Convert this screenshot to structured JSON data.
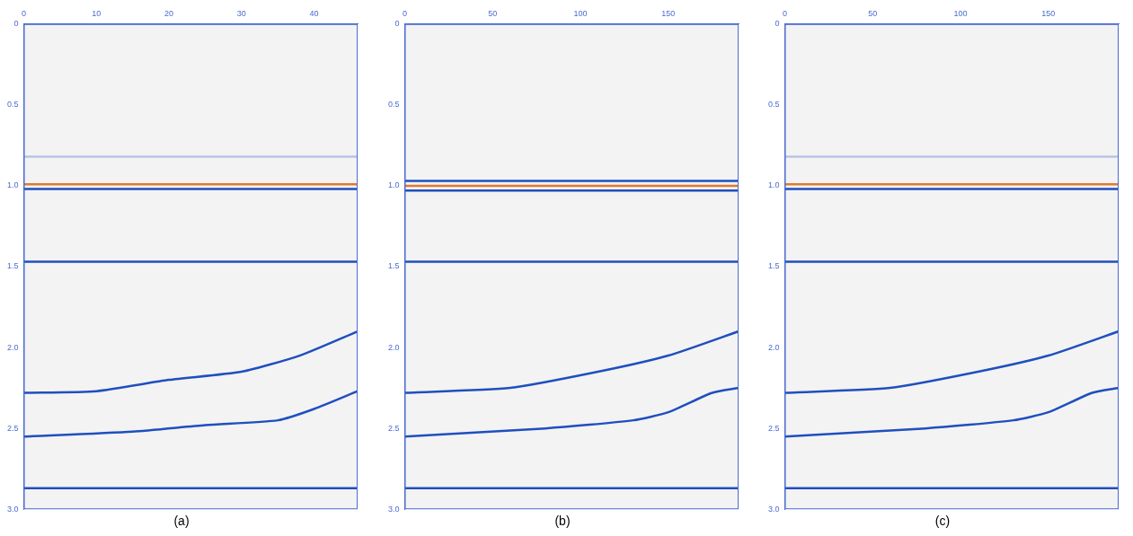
{
  "chart_data": [
    {
      "type": "line",
      "title": "(a)",
      "xlim": [
        0,
        46
      ],
      "xticks": [
        0,
        10,
        20,
        30,
        40
      ],
      "ylim": [
        0,
        3
      ],
      "yticks": [
        0,
        0.5,
        1,
        1.5,
        2,
        2.5,
        3
      ],
      "grid": false,
      "series": [
        {
          "color": "#b8c4e6",
          "x": [
            0,
            46
          ],
          "values": [
            0.82,
            0.82
          ]
        },
        {
          "color": "#e07a2e",
          "x": [
            0,
            46
          ],
          "values": [
            0.99,
            0.99
          ]
        },
        {
          "color": "#1f4fbf",
          "x": [
            0,
            46
          ],
          "values": [
            1.02,
            1.02
          ]
        },
        {
          "color": "#1f4fbf",
          "x": [
            0,
            46
          ],
          "values": [
            1.47,
            1.47
          ]
        },
        {
          "color": "#1f4fbf",
          "x": [
            0,
            10,
            20,
            30,
            38,
            46
          ],
          "values": [
            2.28,
            2.27,
            2.2,
            2.15,
            2.05,
            1.9
          ]
        },
        {
          "color": "#1f4fbf",
          "x": [
            0,
            15,
            25,
            35,
            40,
            46
          ],
          "values": [
            2.55,
            2.52,
            2.48,
            2.45,
            2.38,
            2.27
          ]
        },
        {
          "color": "#1f4fbf",
          "x": [
            0,
            46
          ],
          "values": [
            2.87,
            2.87
          ]
        }
      ]
    },
    {
      "type": "line",
      "title": "(b)",
      "xlim": [
        0,
        190
      ],
      "xticks": [
        0,
        50,
        100,
        150
      ],
      "ylim": [
        0,
        3
      ],
      "yticks": [
        0,
        0.5,
        1,
        1.5,
        2,
        2.5,
        3
      ],
      "grid": false,
      "series": [
        {
          "color": "#1f4fbf",
          "x": [
            0,
            190
          ],
          "values": [
            0.97,
            0.97
          ]
        },
        {
          "color": "#e07a2e",
          "x": [
            0,
            190
          ],
          "values": [
            1.0,
            1.0
          ]
        },
        {
          "color": "#1f4fbf",
          "x": [
            0,
            190
          ],
          "values": [
            1.03,
            1.03
          ]
        },
        {
          "color": "#1f4fbf",
          "x": [
            0,
            190
          ],
          "values": [
            1.47,
            1.47
          ]
        },
        {
          "color": "#1f4fbf",
          "x": [
            0,
            60,
            110,
            150,
            190
          ],
          "values": [
            2.28,
            2.25,
            2.15,
            2.05,
            1.9
          ]
        },
        {
          "color": "#1f4fbf",
          "x": [
            0,
            80,
            130,
            150,
            175,
            190
          ],
          "values": [
            2.55,
            2.5,
            2.45,
            2.4,
            2.28,
            2.25
          ]
        },
        {
          "color": "#1f4fbf",
          "x": [
            0,
            190
          ],
          "values": [
            2.87,
            2.87
          ]
        }
      ]
    },
    {
      "type": "line",
      "title": "(c)",
      "xlim": [
        0,
        190
      ],
      "xticks": [
        0,
        50,
        100,
        150
      ],
      "ylim": [
        0,
        3
      ],
      "yticks": [
        0,
        0.5,
        1,
        1.5,
        2,
        2.5,
        3
      ],
      "grid": false,
      "series": [
        {
          "color": "#b8c4e6",
          "x": [
            0,
            190
          ],
          "values": [
            0.82,
            0.82
          ]
        },
        {
          "color": "#e07a2e",
          "x": [
            0,
            190
          ],
          "values": [
            0.99,
            0.99
          ]
        },
        {
          "color": "#1f4fbf",
          "x": [
            0,
            190
          ],
          "values": [
            1.02,
            1.02
          ]
        },
        {
          "color": "#1f4fbf",
          "x": [
            0,
            190
          ],
          "values": [
            1.47,
            1.47
          ]
        },
        {
          "color": "#1f4fbf",
          "x": [
            0,
            60,
            110,
            150,
            190
          ],
          "values": [
            2.28,
            2.25,
            2.15,
            2.05,
            1.9
          ]
        },
        {
          "color": "#1f4fbf",
          "x": [
            0,
            80,
            130,
            150,
            175,
            190
          ],
          "values": [
            2.55,
            2.5,
            2.45,
            2.4,
            2.28,
            2.25
          ]
        },
        {
          "color": "#1f4fbf",
          "x": [
            0,
            190
          ],
          "values": [
            2.87,
            2.87
          ]
        }
      ]
    }
  ]
}
